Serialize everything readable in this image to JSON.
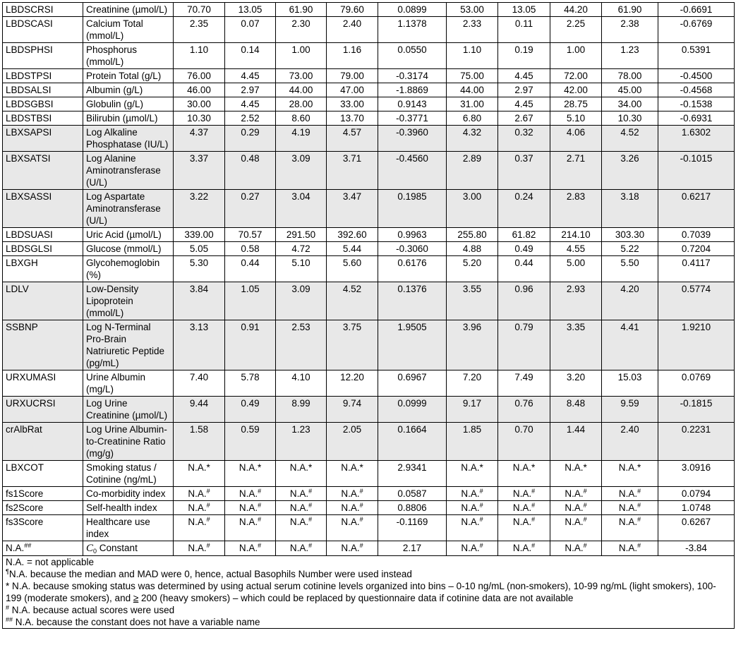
{
  "table": {
    "rows": [
      {
        "cells": [
          "LBDSCRSI",
          "Creatinine (µmol/L)",
          "70.70",
          "13.05",
          "61.90",
          "79.60",
          "0.0899",
          "53.00",
          "13.05",
          "44.20",
          "61.90",
          "-0.6691"
        ]
      },
      {
        "cells": [
          "LBDSCASI",
          "Calcium Total (mmol/L)",
          "2.35",
          "0.07",
          "2.30",
          "2.40",
          "1.1378",
          "2.33",
          "0.11",
          "2.25",
          "2.38",
          "-0.6769"
        ]
      },
      {
        "cells": [
          "LBDSPHSI",
          "Phosphorus (mmol/L)",
          "1.10",
          "0.14",
          "1.00",
          "1.16",
          "0.0550",
          "1.10",
          "0.19",
          "1.00",
          "1.23",
          "0.5391"
        ]
      },
      {
        "cells": [
          "LBDSTPSI",
          "Protein Total (g/L)",
          "76.00",
          "4.45",
          "73.00",
          "79.00",
          "-0.3174",
          "75.00",
          "4.45",
          "72.00",
          "78.00",
          "-0.4500"
        ]
      },
      {
        "cells": [
          "LBDSALSI",
          "Albumin (g/L)",
          "46.00",
          "2.97",
          "44.00",
          "47.00",
          "-1.8869",
          "44.00",
          "2.97",
          "42.00",
          "45.00",
          "-0.4568"
        ]
      },
      {
        "cells": [
          "LBDSGBSI",
          "Globulin (g/L)",
          "30.00",
          "4.45",
          "28.00",
          "33.00",
          "0.9143",
          "31.00",
          "4.45",
          "28.75",
          "34.00",
          "-0.1538"
        ]
      },
      {
        "cells": [
          "LBDSTBSI",
          "Bilirubin (µmol/L)",
          "10.30",
          "2.52",
          "8.60",
          "13.70",
          "-0.3771",
          "6.80",
          "2.67",
          "5.10",
          "10.30",
          "-0.6931"
        ]
      },
      {
        "shaded": true,
        "cells": [
          "LBXSAPSI",
          "Log Alkaline Phosphatase (IU/L)",
          "4.37",
          "0.29",
          "4.19",
          "4.57",
          "-0.3960",
          "4.32",
          "0.32",
          "4.06",
          "4.52",
          "1.6302"
        ]
      },
      {
        "shaded": true,
        "cells": [
          "LBXSATSI",
          "Log Alanine Aminotransferase (U/L)",
          "3.37",
          "0.48",
          "3.09",
          "3.71",
          "-0.4560",
          "2.89",
          "0.37",
          "2.71",
          "3.26",
          "-0.1015"
        ]
      },
      {
        "shaded": true,
        "cells": [
          "LBXSASSI",
          "Log Aspartate Aminotransferase (U/L)",
          "3.22",
          "0.27",
          "3.04",
          "3.47",
          "0.1985",
          "3.00",
          "0.24",
          "2.83",
          "3.18",
          "0.6217"
        ]
      },
      {
        "cells": [
          "LBDSUASI",
          "Uric Acid (µmol/L)",
          "339.00",
          "70.57",
          "291.50",
          "392.60",
          "0.9963",
          "255.80",
          "61.82",
          "214.10",
          "303.30",
          "0.7039"
        ]
      },
      {
        "cells": [
          "LBDSGLSI",
          "Glucose (mmol/L)",
          "5.05",
          "0.58",
          "4.72",
          "5.44",
          "-0.3060",
          "4.88",
          "0.49",
          "4.55",
          "5.22",
          "0.7204"
        ]
      },
      {
        "cells": [
          "LBXGH",
          "Glycohemoglobin (%)",
          "5.30",
          "0.44",
          "5.10",
          "5.60",
          "0.6176",
          "5.20",
          "0.44",
          "5.00",
          "5.50",
          "0.4117"
        ]
      },
      {
        "shaded": true,
        "cells": [
          "LDLV",
          "Low-Density Lipoprotein (mmol/L)",
          "3.84",
          "1.05",
          "3.09",
          "4.52",
          "0.1376",
          "3.55",
          "0.96",
          "2.93",
          "4.20",
          "0.5774"
        ]
      },
      {
        "shaded": true,
        "cells": [
          "SSBNP",
          "Log N-Terminal Pro-Brain Natriuretic Peptide (pg/mL)",
          "3.13",
          "0.91",
          "2.53",
          "3.75",
          "1.9505",
          "3.96",
          "0.79",
          "3.35",
          "4.41",
          "1.9210"
        ]
      },
      {
        "cells": [
          "URXUMASI",
          "Urine Albumin (mg/L)",
          "7.40",
          "5.78",
          "4.10",
          "12.20",
          "0.6967",
          "7.20",
          "7.49",
          "3.20",
          "15.03",
          "0.0769"
        ]
      },
      {
        "shaded": true,
        "cells": [
          "URXUCRSI",
          "Log Urine Creatinine (µmol/L)",
          "9.44",
          "0.49",
          "8.99",
          "9.74",
          "0.0999",
          "9.17",
          "0.76",
          "8.48",
          "9.59",
          "-0.1815"
        ]
      },
      {
        "shaded": true,
        "cells": [
          "crAlbRat",
          "Log Urine Albumin-to-Creatinine Ratio (mg/g)",
          "1.58",
          "0.59",
          "1.23",
          "2.05",
          "0.1664",
          "1.85",
          "0.70",
          "1.44",
          "2.40",
          "0.2231"
        ]
      },
      {
        "cells": [
          "LBXCOT",
          "Smoking status / Cotinine (ng/mL)",
          "N.A.*",
          "N.A.*",
          "N.A.*",
          "N.A.*",
          "2.9341",
          "N.A.*",
          "N.A.*",
          "N.A.*",
          "N.A.*",
          "3.0916"
        ]
      },
      {
        "cells": [
          "fs1Score",
          "Co-morbidity index",
          [
            {
              "text": "N.A."
            },
            {
              "sup": "#"
            }
          ],
          [
            {
              "text": "N.A."
            },
            {
              "sup": "#"
            }
          ],
          [
            {
              "text": "N.A."
            },
            {
              "sup": "#"
            }
          ],
          [
            {
              "text": "N.A."
            },
            {
              "sup": "#"
            }
          ],
          "0.0587",
          [
            {
              "text": "N.A."
            },
            {
              "sup": "#"
            }
          ],
          [
            {
              "text": "N.A."
            },
            {
              "sup": "#"
            }
          ],
          [
            {
              "text": "N.A."
            },
            {
              "sup": "#"
            }
          ],
          [
            {
              "text": "N.A."
            },
            {
              "sup": "#"
            }
          ],
          "0.0794"
        ]
      },
      {
        "cells": [
          "fs2Score",
          "Self-health index",
          [
            {
              "text": "N.A."
            },
            {
              "sup": "#"
            }
          ],
          [
            {
              "text": "N.A."
            },
            {
              "sup": "#"
            }
          ],
          [
            {
              "text": "N.A."
            },
            {
              "sup": "#"
            }
          ],
          [
            {
              "text": "N.A."
            },
            {
              "sup": "#"
            }
          ],
          "0.8806",
          [
            {
              "text": "N.A."
            },
            {
              "sup": "#"
            }
          ],
          [
            {
              "text": "N.A."
            },
            {
              "sup": "#"
            }
          ],
          [
            {
              "text": "N.A."
            },
            {
              "sup": "#"
            }
          ],
          [
            {
              "text": "N.A."
            },
            {
              "sup": "#"
            }
          ],
          "1.0748"
        ]
      },
      {
        "cells": [
          "fs3Score",
          "Healthcare use index",
          [
            {
              "text": "N.A."
            },
            {
              "sup": "#"
            }
          ],
          [
            {
              "text": "N.A."
            },
            {
              "sup": "#"
            }
          ],
          [
            {
              "text": "N.A."
            },
            {
              "sup": "#"
            }
          ],
          [
            {
              "text": "N.A."
            },
            {
              "sup": "#"
            }
          ],
          "-0.1169",
          [
            {
              "text": "N.A."
            },
            {
              "sup": "#"
            }
          ],
          [
            {
              "text": "N.A."
            },
            {
              "sup": "#"
            }
          ],
          [
            {
              "text": "N.A."
            },
            {
              "sup": "#"
            }
          ],
          [
            {
              "text": "N.A."
            },
            {
              "sup": "#"
            }
          ],
          "0.6267"
        ]
      },
      {
        "cells": [
          [
            {
              "text": "N.A."
            },
            {
              "sup": "##"
            }
          ],
          [
            {
              "i": "C"
            },
            {
              "sub": "0"
            },
            {
              "text": " Constant"
            }
          ],
          [
            {
              "text": "N.A."
            },
            {
              "sup": "#"
            }
          ],
          [
            {
              "text": "N.A."
            },
            {
              "sup": "#"
            }
          ],
          [
            {
              "text": "N.A."
            },
            {
              "sup": "#"
            }
          ],
          [
            {
              "text": "N.A."
            },
            {
              "sup": "#"
            }
          ],
          "2.17",
          [
            {
              "text": "N.A."
            },
            {
              "sup": "#"
            }
          ],
          [
            {
              "text": "N.A."
            },
            {
              "sup": "#"
            }
          ],
          [
            {
              "text": "N.A."
            },
            {
              "sup": "#"
            }
          ],
          [
            {
              "text": "N.A."
            },
            {
              "sup": "#"
            }
          ],
          "-3.84"
        ]
      }
    ]
  },
  "footnotes": [
    "N.A. = not applicable",
    [
      {
        "sup": "¶"
      },
      {
        "text": "N.A. because the median and MAD were 0, hence, actual Basophils Number were used instead"
      }
    ],
    [
      {
        "text": "* N.A. because smoking status was determined by using actual serum cotinine levels organized into bins – 0-10 ng/mL (non-smokers), 10-99 ng/mL (light smokers), 100-199 (moderate smokers), and "
      },
      {
        "u": "≥"
      },
      {
        "text": " 200 (heavy smokers) – which could be replaced by questionnaire data if cotinine data are not available"
      }
    ],
    [
      {
        "sup": "#"
      },
      {
        "text": " N.A. because actual scores were used"
      }
    ],
    [
      {
        "sup": "##"
      },
      {
        "text": " N.A. because the constant does not have a variable name"
      }
    ]
  ]
}
